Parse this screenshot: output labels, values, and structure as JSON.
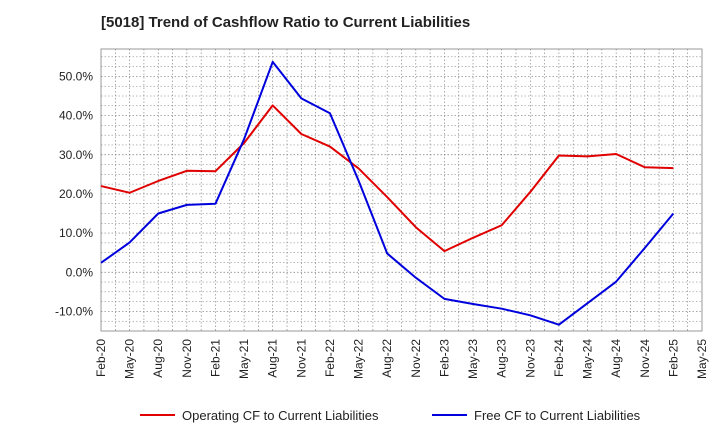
{
  "chart_data": {
    "type": "line",
    "title": "[5018]  Trend of Cashflow Ratio to Current Liabilities",
    "xlabel": "",
    "ylabel": "",
    "x": [
      "Feb-20",
      "May-20",
      "Aug-20",
      "Nov-20",
      "Feb-21",
      "May-21",
      "Aug-21",
      "Nov-21",
      "Feb-22",
      "May-22",
      "Aug-22",
      "Nov-22",
      "Feb-23",
      "May-23",
      "Aug-23",
      "Nov-23",
      "Feb-24",
      "May-24",
      "Aug-24",
      "Nov-24",
      "Feb-25",
      "May-25"
    ],
    "ylim": [
      -15,
      57
    ],
    "yticks": [
      -10,
      0,
      10,
      20,
      30,
      40,
      50
    ],
    "ytick_labels": [
      "-10.0%",
      "0.0%",
      "10.0%",
      "20.0%",
      "30.0%",
      "40.0%",
      "50.0%"
    ],
    "grid": true,
    "legend_position": "bottom",
    "series": [
      {
        "name": "Operating CF to Current Liabilities",
        "color": "#e00000",
        "values": [
          22.0,
          20.3,
          23.3,
          25.9,
          25.8,
          33.0,
          42.6,
          35.3,
          32.1,
          26.5,
          19.2,
          11.5,
          5.4,
          8.8,
          12.0,
          20.5,
          29.8,
          29.6,
          30.2,
          26.8,
          26.6,
          null
        ]
      },
      {
        "name": "Free CF to Current Liabilities",
        "color": "#0000dd",
        "values": [
          2.4,
          7.6,
          15.0,
          17.2,
          17.5,
          34.0,
          53.7,
          44.4,
          40.6,
          23.4,
          4.8,
          -1.4,
          -6.8,
          -8.1,
          -9.3,
          -11.0,
          -13.4,
          -7.9,
          -2.4,
          6.2,
          15.0,
          null
        ]
      }
    ]
  }
}
